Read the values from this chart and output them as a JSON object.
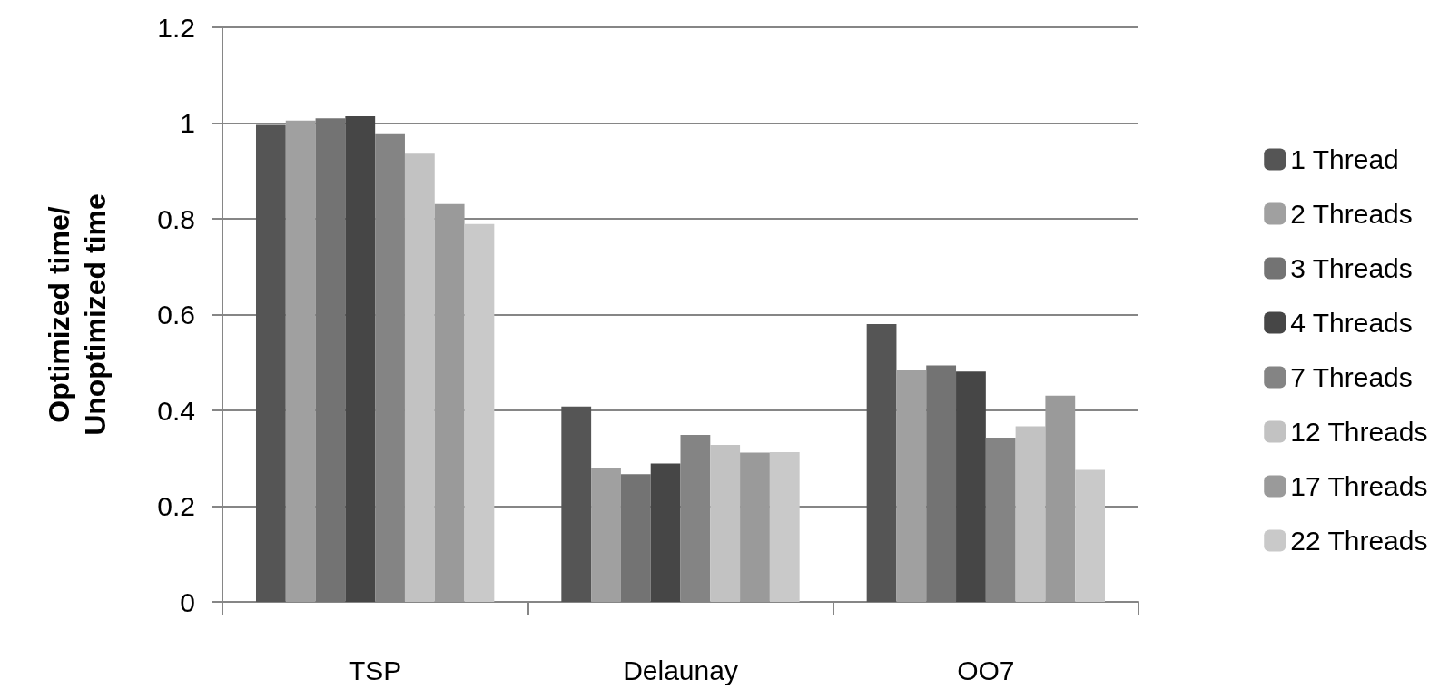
{
  "chart_data": {
    "type": "bar",
    "ylabel": "Optimized time/\nUnoptimized time",
    "categories": [
      "TSP",
      "Delaunay",
      "OO7"
    ],
    "series": [
      {
        "name": "1 Thread",
        "color": "#555555",
        "values": [
          0.996,
          0.408,
          0.58
        ]
      },
      {
        "name": "2 Threads",
        "color": "#a0a0a0",
        "values": [
          1.005,
          0.279,
          0.485
        ]
      },
      {
        "name": "3 Threads",
        "color": "#737373",
        "values": [
          1.01,
          0.267,
          0.494
        ]
      },
      {
        "name": "4 Threads",
        "color": "#464646",
        "values": [
          1.014,
          0.289,
          0.481
        ]
      },
      {
        "name": "7 Threads",
        "color": "#848484",
        "values": [
          0.977,
          0.349,
          0.343
        ]
      },
      {
        "name": "12 Threads",
        "color": "#c2c2c2",
        "values": [
          0.936,
          0.328,
          0.367
        ]
      },
      {
        "name": "17 Threads",
        "color": "#9a9a9a",
        "values": [
          0.831,
          0.312,
          0.431
        ]
      },
      {
        "name": "22 Threads",
        "color": "#c9c9c9",
        "values": [
          0.789,
          0.313,
          0.276
        ]
      }
    ],
    "ylim": [
      0,
      1.2
    ],
    "yticks": [
      0,
      0.2,
      0.4,
      0.6,
      0.8,
      1,
      1.2
    ],
    "grid": "y",
    "legend": "right"
  }
}
